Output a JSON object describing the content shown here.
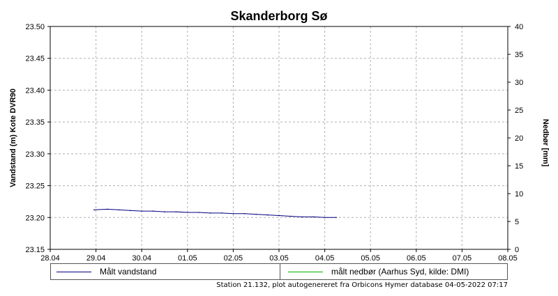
{
  "chart_data": {
    "type": "line",
    "title": "Skanderborg Sø",
    "ylabel": "Vandstand (m) Kote DVR90",
    "y2label": "Nedbør [mm]",
    "xlim": [
      "2022-04-28",
      "2022-05-08"
    ],
    "ylim": [
      23.15,
      23.5
    ],
    "y2lim": [
      0,
      40
    ],
    "xticks": [
      "28.04",
      "29.04",
      "30.04",
      "01.05",
      "02.05",
      "03.05",
      "04.05",
      "05.05",
      "06.05",
      "07.05",
      "08.05"
    ],
    "yticks": [
      "23.15",
      "23.20",
      "23.25",
      "23.30",
      "23.35",
      "23.40",
      "23.45",
      "23.50"
    ],
    "y2ticks": [
      "0",
      "5",
      "10",
      "15",
      "20",
      "25",
      "30",
      "35",
      "40"
    ],
    "grid": true,
    "series": [
      {
        "name": "Målt vandstand",
        "color": "#000080",
        "axis": "left",
        "x": [
          "2022-04-28T23:00",
          "2022-04-29T06:00",
          "2022-04-29T12:00",
          "2022-04-29T18:00",
          "2022-04-30T00:00",
          "2022-04-30T06:00",
          "2022-04-30T12:00",
          "2022-04-30T18:00",
          "2022-05-01T00:00",
          "2022-05-01T06:00",
          "2022-05-01T12:00",
          "2022-05-01T18:00",
          "2022-05-02T00:00",
          "2022-05-02T06:00",
          "2022-05-02T12:00",
          "2022-05-02T18:00",
          "2022-05-03T00:00",
          "2022-05-03T06:00",
          "2022-05-03T12:00",
          "2022-05-03T18:00",
          "2022-05-04T00:00",
          "2022-05-04T06:00"
        ],
        "values": [
          23.212,
          23.213,
          23.212,
          23.211,
          23.21,
          23.21,
          23.209,
          23.209,
          23.208,
          23.208,
          23.207,
          23.207,
          23.206,
          23.206,
          23.205,
          23.204,
          23.203,
          23.202,
          23.201,
          23.201,
          23.2,
          23.2
        ]
      },
      {
        "name": "målt nedbør (Aarhus Syd, kilde: DMI)",
        "color": "#00b000",
        "axis": "right",
        "x": [],
        "values": []
      }
    ]
  },
  "footer": "Station 21.132, plot autogenereret fra Orbicons Hymer database 04-05-2022 07:17"
}
